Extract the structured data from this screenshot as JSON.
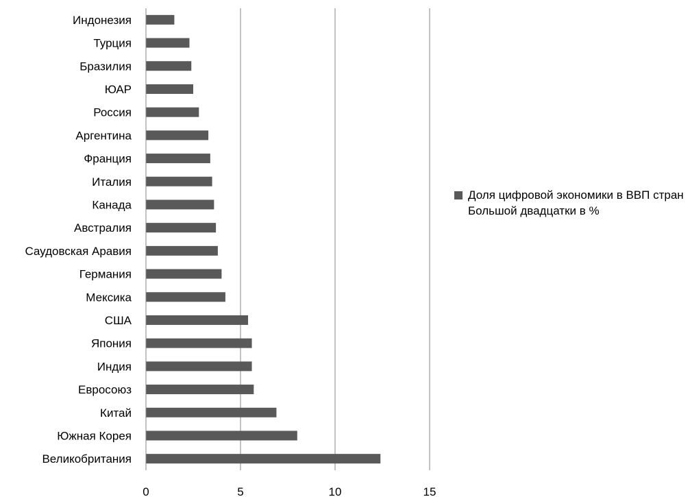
{
  "chart_data": {
    "type": "bar",
    "orientation": "horizontal",
    "categories": [
      "Индонезия",
      "Турция",
      "Бразилия",
      "ЮАР",
      "Россия",
      "Аргентина",
      "Франция",
      "Италия",
      "Канада",
      "Австралия",
      "Саудовская Аравия",
      "Германия",
      "Мексика",
      "США",
      "Япония",
      "Индия",
      "Евросоюз",
      "Китай",
      "Южная Корея",
      "Великобритания"
    ],
    "series": [
      {
        "name": "Доля цифровой экономики в ВВП стран Большой двадцатки в %",
        "values": [
          1.5,
          2.3,
          2.4,
          2.5,
          2.8,
          3.3,
          3.4,
          3.5,
          3.6,
          3.7,
          3.8,
          4.0,
          4.2,
          5.4,
          5.6,
          5.6,
          5.7,
          6.9,
          8.0,
          12.4
        ]
      }
    ],
    "xlim": [
      0,
      15
    ],
    "xticks": [
      "0",
      "5",
      "10",
      "15"
    ],
    "grid": "vertical major",
    "legend_position": "right",
    "bar_color": "#595959"
  }
}
